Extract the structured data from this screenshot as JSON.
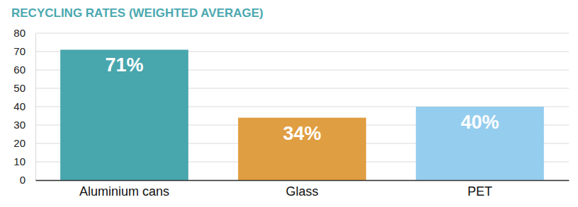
{
  "chart_data": {
    "type": "bar",
    "title": "RECYCLING RATES (WEIGHTED AVERAGE)",
    "categories": [
      "Aluminium cans",
      "Glass",
      "PET"
    ],
    "values": [
      71,
      34,
      40
    ],
    "value_labels": [
      "71%",
      "34%",
      "40%"
    ],
    "colors": [
      "#48a6ad",
      "#e09e42",
      "#95cdee"
    ],
    "ylim": [
      0,
      80
    ],
    "yticks": [
      0,
      10,
      20,
      30,
      40,
      50,
      60,
      70,
      80
    ],
    "grid": true,
    "data_labels": true
  }
}
